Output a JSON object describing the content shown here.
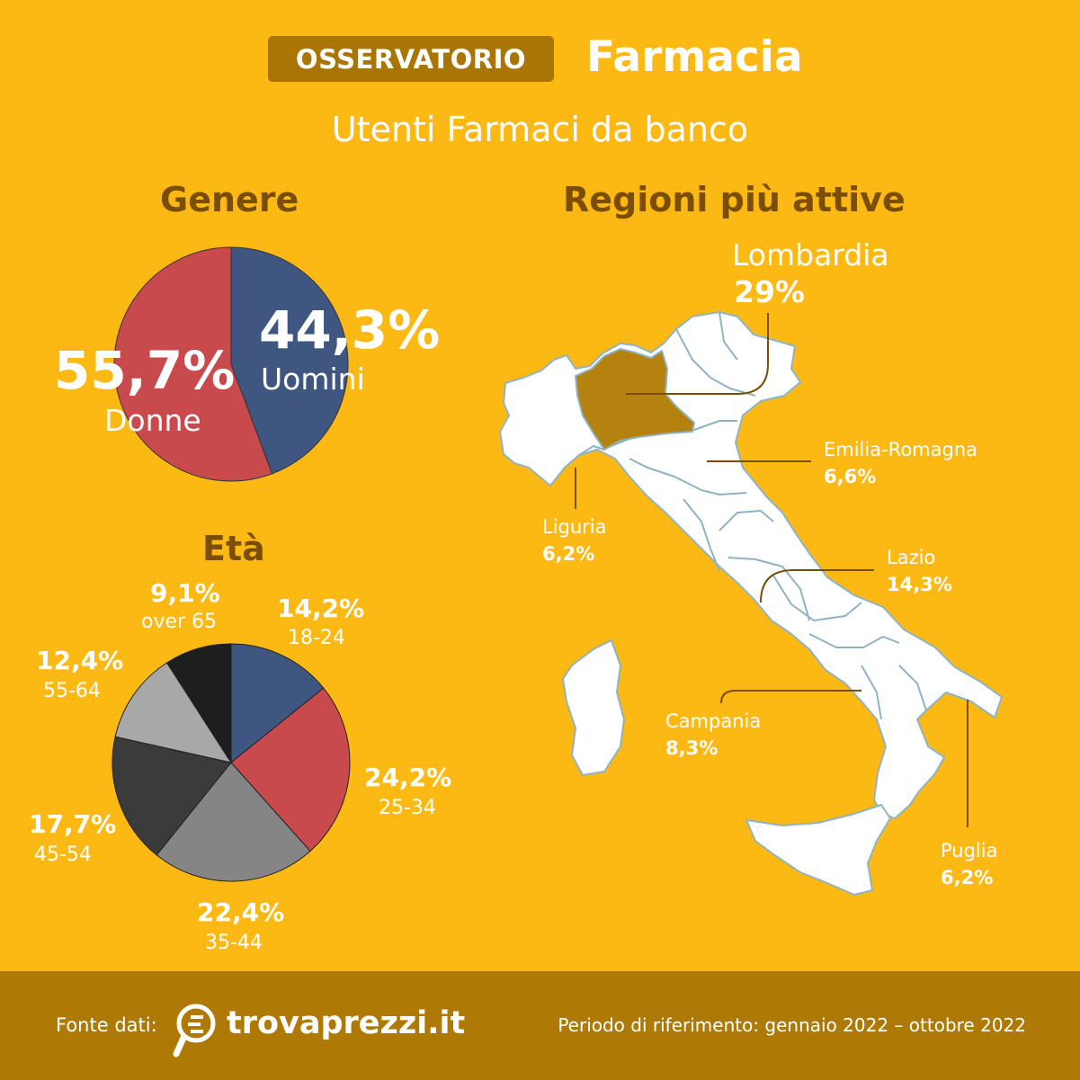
{
  "header": {
    "badge": "OSSERVATORIO",
    "title": "Farmacia",
    "subtitle": "Utenti Farmaci da banco"
  },
  "sections": {
    "gender_title": "Genere",
    "age_title": "Età",
    "regions_title": "Regioni più attive"
  },
  "colors": {
    "background": "#FDB913",
    "brown_dark": "#7A4E07",
    "footer": "#AE7A05",
    "lombardia": "#B5820F",
    "men": "#3F5681",
    "women": "#C94A4D",
    "age_18_24": "#3F5681",
    "age_25_34": "#C94A4D",
    "age_35_44": "#858585",
    "age_45_54": "#3B3B3B",
    "age_55_64": "#A8A8A8",
    "age_over65": "#1E1E1E"
  },
  "chart_data": [
    {
      "type": "pie",
      "title": "Genere",
      "categories": [
        "Uomini",
        "Donne"
      ],
      "values": [
        44.3,
        55.7
      ],
      "labels": [
        "44,3%",
        "55,7%"
      ],
      "colors": [
        "#3F5681",
        "#C94A4D"
      ]
    },
    {
      "type": "pie",
      "title": "Età",
      "categories": [
        "18-24",
        "25-34",
        "35-44",
        "45-54",
        "55-64",
        "over 65"
      ],
      "values": [
        14.2,
        24.2,
        22.4,
        17.7,
        12.4,
        9.1
      ],
      "labels": [
        "14,2%",
        "24,2%",
        "22,4%",
        "17,7%",
        "12,4%",
        "9,1%"
      ],
      "colors": [
        "#3F5681",
        "#C94A4D",
        "#858585",
        "#3B3B3B",
        "#A8A8A8",
        "#1E1E1E"
      ]
    }
  ],
  "regions": [
    {
      "name": "Lombardia",
      "value": "29%"
    },
    {
      "name": "Emilia-Romagna",
      "value": "6,6%"
    },
    {
      "name": "Liguria",
      "value": "6,2%"
    },
    {
      "name": "Lazio",
      "value": "14,3%"
    },
    {
      "name": "Campania",
      "value": "8,3%"
    },
    {
      "name": "Puglia",
      "value": "6,2%"
    }
  ],
  "footer": {
    "source_label": "Fonte dati:",
    "brand": "trovaprezzi.it",
    "period": "Periodo di riferimento: gennaio 2022 – ottobre 2022"
  }
}
